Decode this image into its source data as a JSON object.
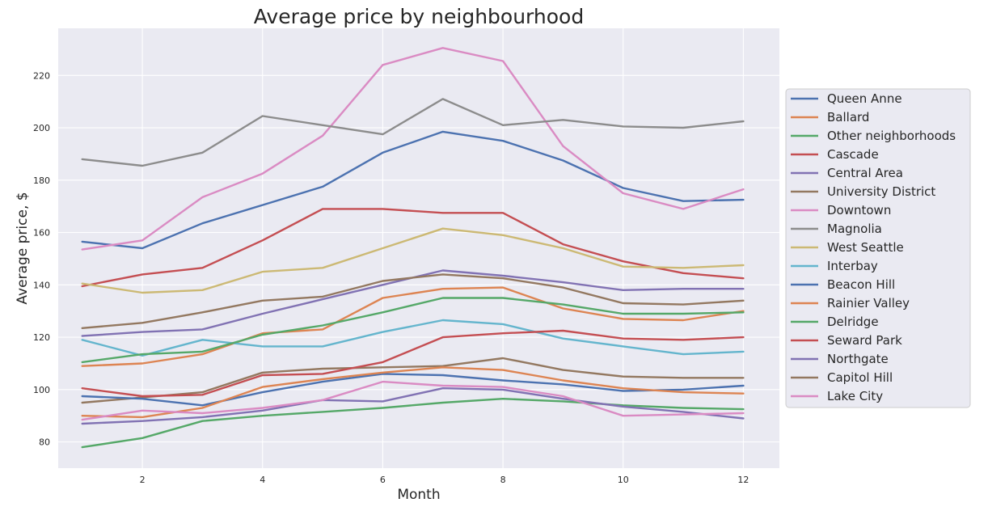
{
  "chart_data": {
    "type": "line",
    "title": "Average price by neighbourhood",
    "xlabel": "Month",
    "ylabel": "Average price, $",
    "x": [
      1,
      2,
      3,
      4,
      5,
      6,
      7,
      8,
      9,
      10,
      11,
      12
    ],
    "xlim": [
      0.6,
      12.6
    ],
    "ylim": [
      70,
      238
    ],
    "xticks": [
      2,
      4,
      6,
      8,
      10,
      12
    ],
    "yticks": [
      80,
      100,
      120,
      140,
      160,
      180,
      200,
      220
    ],
    "grid": true,
    "legend_position": "right",
    "series": [
      {
        "name": "Queen Anne",
        "color": "#4c72b0",
        "values": [
          156.5,
          154,
          163.5,
          170.5,
          177.5,
          190.5,
          198.5,
          195,
          187.5,
          177,
          172,
          172.5
        ]
      },
      {
        "name": "Ballard",
        "color": "#dd8452",
        "values": [
          109,
          110,
          113.5,
          121.5,
          123,
          135,
          138.5,
          139,
          131,
          127,
          126.5,
          130
        ]
      },
      {
        "name": "Other neighborhoods",
        "color": "#55a868",
        "values": [
          78,
          81.5,
          88,
          90,
          91.5,
          93,
          95,
          96.5,
          95.5,
          94,
          93,
          92.5
        ]
      },
      {
        "name": "Cascade",
        "color": "#c44e52",
        "values": [
          139.5,
          144,
          146.5,
          157,
          169,
          169,
          167.5,
          167.5,
          155.5,
          149,
          144.5,
          142.5
        ]
      },
      {
        "name": "Central Area",
        "color": "#8172b3",
        "values": [
          120.5,
          122,
          123,
          129,
          134.5,
          140,
          145.5,
          143.5,
          141,
          138,
          138.5,
          138.5
        ]
      },
      {
        "name": "University District",
        "color": "#937860",
        "values": [
          95,
          97,
          99,
          106.5,
          108,
          108.5,
          109,
          112,
          107.5,
          105,
          104.5,
          104.5
        ]
      },
      {
        "name": "Downtown",
        "color": "#da8bc3",
        "values": [
          153.5,
          157,
          173.5,
          182.5,
          197,
          224,
          230.5,
          225.5,
          193,
          175,
          169,
          176.5
        ]
      },
      {
        "name": "Magnolia",
        "color": "#8c8c8c",
        "values": [
          188,
          185.5,
          190.5,
          204.5,
          201,
          197.5,
          211,
          201,
          203,
          200.5,
          200,
          202.5
        ]
      },
      {
        "name": "West Seattle",
        "color": "#ccb974",
        "values": [
          140.5,
          137,
          138,
          145,
          146.5,
          154,
          161.5,
          159,
          154,
          147,
          146.5,
          147.5
        ]
      },
      {
        "name": "Interbay",
        "color": "#64b5cd",
        "values": [
          119,
          113,
          119,
          116.5,
          116.5,
          122,
          126.5,
          125,
          119.5,
          116.5,
          113.5,
          114.5
        ]
      },
      {
        "name": "Beacon Hill",
        "color": "#4c72b0",
        "values": [
          97.5,
          96.5,
          94,
          99,
          103,
          106,
          105.5,
          103.5,
          102,
          99.5,
          100,
          101.5
        ]
      },
      {
        "name": "Rainier Valley",
        "color": "#dd8452",
        "values": [
          90,
          89.5,
          93,
          101,
          104,
          106.5,
          108.5,
          107.5,
          103.5,
          100.5,
          99,
          98.5
        ]
      },
      {
        "name": "Delridge",
        "color": "#55a868",
        "values": [
          110.5,
          113.5,
          114.5,
          121,
          124.5,
          129.5,
          135,
          135,
          132.5,
          129,
          129,
          129.5
        ]
      },
      {
        "name": "Seward Park",
        "color": "#c44e52",
        "values": [
          100.5,
          97.5,
          98,
          105.5,
          106,
          110.5,
          120,
          121.5,
          122.5,
          119.5,
          119,
          120
        ]
      },
      {
        "name": "Northgate",
        "color": "#8172b3",
        "values": [
          87,
          88,
          89.5,
          92,
          96,
          95.5,
          100.5,
          100,
          96.5,
          93.5,
          91.5,
          89
        ]
      },
      {
        "name": "Capitol Hill",
        "color": "#937860",
        "values": [
          123.5,
          125.5,
          129.5,
          134,
          135.5,
          141.5,
          144,
          142.5,
          139,
          133,
          132.5,
          134
        ]
      },
      {
        "name": "Lake City",
        "color": "#da8bc3",
        "values": [
          88.5,
          92,
          91,
          93,
          96,
          103,
          101.5,
          101,
          97.5,
          90,
          90.5,
          91
        ]
      }
    ]
  },
  "colors": {
    "plot_background": "#eaeaf2",
    "grid": "#ffffff",
    "page_background": "#ffffff"
  }
}
